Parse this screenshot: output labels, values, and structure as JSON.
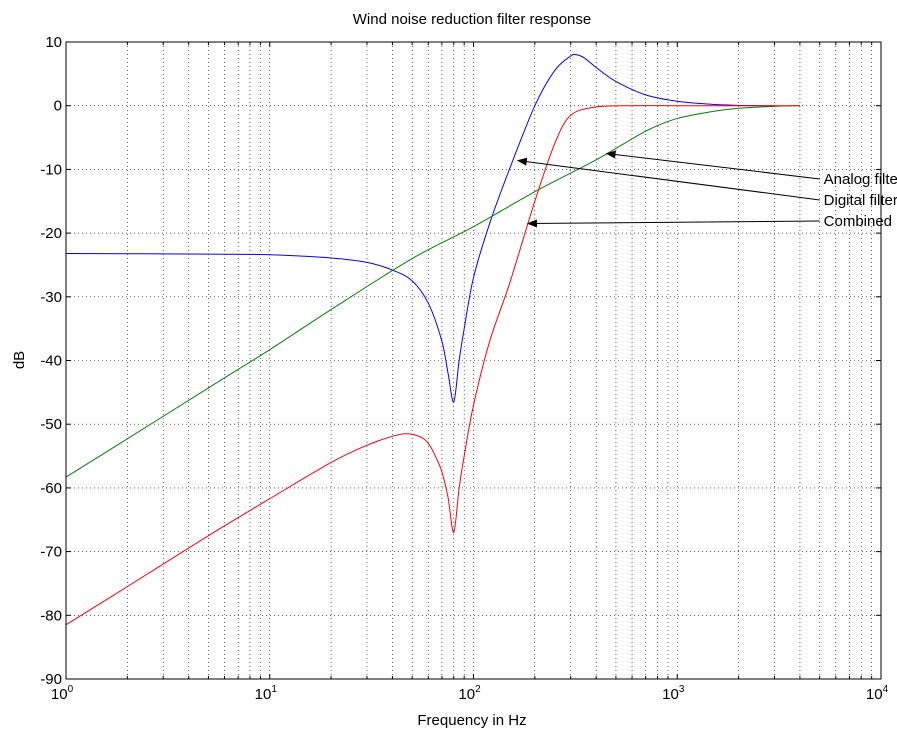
{
  "chart_data": {
    "type": "line",
    "title": "Wind noise reduction filter response",
    "xlabel": "Frequency in Hz",
    "ylabel": "dB",
    "xscale": "log",
    "xlim": [
      1,
      10000
    ],
    "ylim": [
      -90,
      10
    ],
    "grid": "dotted major and minor",
    "x_tick_base": "10",
    "x_tick_exponents": [
      "0",
      "1",
      "2",
      "3",
      "4"
    ],
    "y_ticks": [
      "10",
      "0",
      "-10",
      "-20",
      "-30",
      "-40",
      "-50",
      "-60",
      "-70",
      "-80",
      "-90"
    ],
    "series": [
      {
        "id": "digital",
        "color": "#0000ff",
        "x": [
          1,
          5,
          10,
          20,
          30,
          40,
          50,
          60,
          70,
          75,
          80,
          85,
          90,
          100,
          120,
          150,
          200,
          250,
          300,
          320,
          350,
          400,
          500,
          700,
          1000,
          1500,
          2000,
          2500,
          3000
        ],
        "y": [
          -23.2,
          -23.3,
          -23.4,
          -23.9,
          -24.6,
          -25.8,
          -27.5,
          -31.0,
          -37.0,
          -42.0,
          -46.5,
          -40.0,
          -35.0,
          -27.0,
          -18.5,
          -10.0,
          0.0,
          5.5,
          7.8,
          8.0,
          7.5,
          6.0,
          3.8,
          1.7,
          0.7,
          0.2,
          0.05,
          0.0,
          0.0
        ]
      },
      {
        "id": "analog",
        "color": "#008000",
        "x": [
          1,
          2,
          5,
          10,
          20,
          50,
          100,
          200,
          400,
          700,
          1000,
          1500,
          2000,
          3000,
          4000
        ],
        "y": [
          -58.3,
          -52.3,
          -44.3,
          -38.3,
          -32.0,
          -24.0,
          -19.0,
          -13.5,
          -8.5,
          -4.0,
          -2.0,
          -0.9,
          -0.4,
          -0.1,
          0.0
        ]
      },
      {
        "id": "combined",
        "color": "#ff0000",
        "x": [
          1,
          2,
          5,
          10,
          20,
          30,
          40,
          47,
          55,
          60,
          65,
          70,
          75,
          80,
          85,
          90,
          100,
          120,
          150,
          200,
          250,
          300,
          400,
          600,
          1000,
          1500,
          2000,
          3000,
          4000
        ],
        "y": [
          -81.5,
          -75.5,
          -67.5,
          -61.7,
          -56.0,
          -53.3,
          -51.9,
          -51.5,
          -52.0,
          -53.0,
          -55.0,
          -57.5,
          -61.5,
          -67.0,
          -60.0,
          -55.0,
          -47.0,
          -37.0,
          -28.0,
          -15.0,
          -6.0,
          -1.5,
          -0.2,
          0.0,
          0.0,
          0.0,
          0.0,
          0.0,
          0.0
        ]
      }
    ],
    "annotations": [
      {
        "text": "Analog filter",
        "target_series": "analog",
        "target": [
          450,
          -7.5
        ]
      },
      {
        "text": "Digital filter",
        "target_series": "digital",
        "target": [
          165,
          -8.6
        ]
      },
      {
        "text": "Combined response",
        "target_series": "combined",
        "target": [
          185,
          -18.5
        ]
      }
    ],
    "annotation_text_anchor": [
      5000,
      -11.5
    ],
    "annotation_line_spacing_db": 3.3
  }
}
